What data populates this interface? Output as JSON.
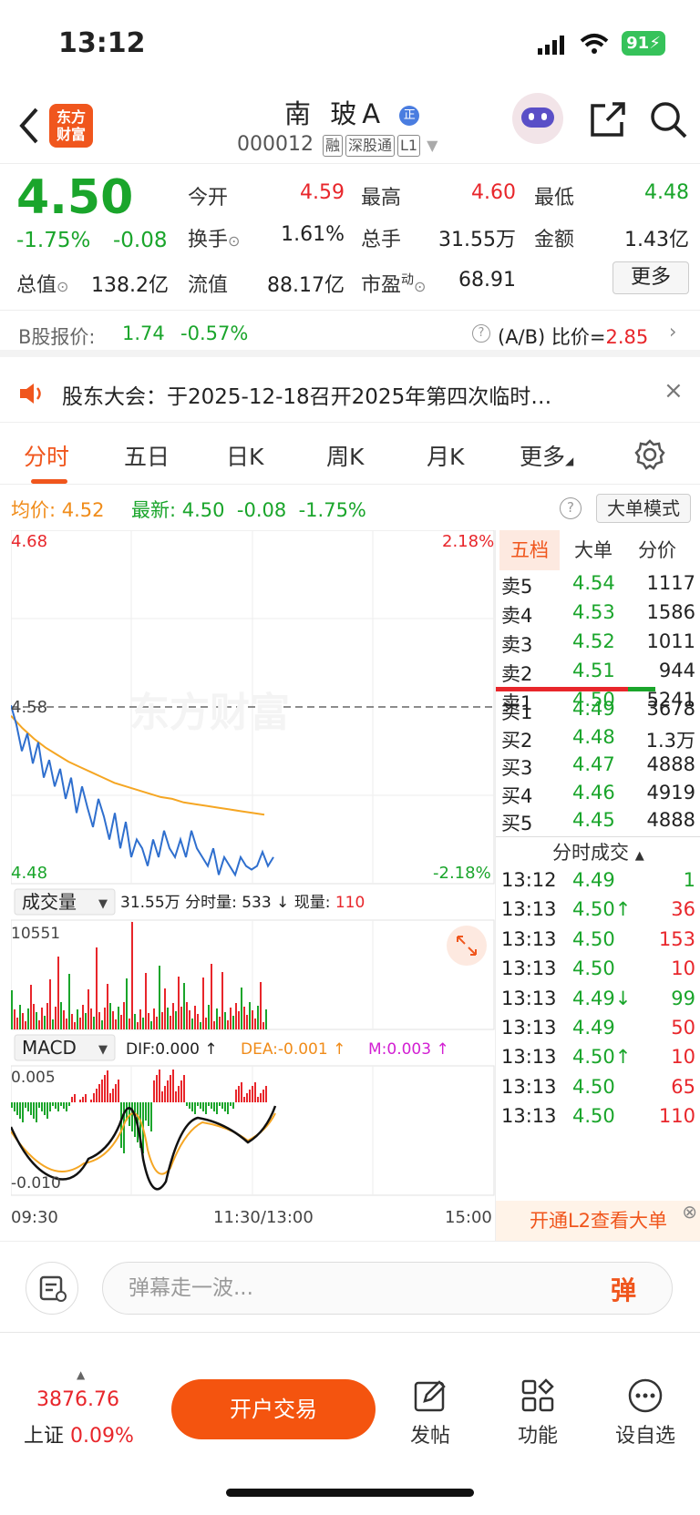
{
  "status": {
    "time": "13:12",
    "battery": "91"
  },
  "header": {
    "logo_line1": "东方",
    "logo_line2": "财富",
    "name": "南 玻A",
    "code": "000012",
    "tags": [
      "融",
      "深股通",
      "L1"
    ]
  },
  "quote": {
    "price": "4.50",
    "change_pct": "-1.75%",
    "change": "-0.08",
    "open_label": "今开",
    "open": "4.59",
    "high_label": "最高",
    "high": "4.60",
    "low_label": "最低",
    "low": "4.48",
    "turnover_label": "换手",
    "turnover": "1.61%",
    "volume_label": "总手",
    "volume": "31.55万",
    "amount_label": "金额",
    "amount": "1.43亿",
    "mktcap_label": "总值",
    "mktcap": "138.2亿",
    "float_label": "流值",
    "float": "88.17亿",
    "pe_label": "市盈",
    "pe_sup": "动",
    "pe": "68.91",
    "more": "更多"
  },
  "bshare": {
    "label": "B股报价:",
    "price": "1.74",
    "pct": "-0.57%",
    "ratio_label": "(A/B) 比价=",
    "ratio": "2.85"
  },
  "notice": {
    "text": "股东大会：于2025-12-18召开2025年第四次临时…"
  },
  "tabs": [
    "分时",
    "五日",
    "日K",
    "周K",
    "月K",
    "更多"
  ],
  "avg": {
    "avg_label": "均价:",
    "avg": "4.52",
    "latest_label": "最新:",
    "latest": "4.50",
    "chg": "-0.08",
    "pct": "-1.75%",
    "mode_btn": "大单模式"
  },
  "chart": {
    "top_price": "4.68",
    "top_pct": "2.18%",
    "mid_price": "4.58",
    "bottom_price": "4.48",
    "bottom_pct": "-2.18%",
    "watermark": "东方财富",
    "vol_label": "成交量",
    "vol_info": "31.55万 分时量: 533 ↓ 现量:",
    "vol_now": "110",
    "vol_max": "10551",
    "macd_label": "MACD",
    "dif": "DIF:0.000 ↑",
    "dea": "DEA:-0.001 ↑",
    "m": "M:0.003 ↑",
    "macd_top": "0.005",
    "macd_bottom": "-0.010",
    "time_start": "09:30",
    "time_mid": "11:30/13:00",
    "time_end": "15:00",
    "price_series": [
      4.581,
      4.57,
      4.555,
      4.565,
      4.548,
      4.56,
      4.54,
      4.55,
      4.535,
      4.545,
      4.528,
      4.54,
      4.52,
      4.535,
      4.523,
      4.512,
      4.528,
      4.518,
      4.505,
      4.52,
      4.5,
      4.515,
      4.495,
      4.505,
      4.5,
      4.49,
      4.505,
      4.495,
      4.51,
      4.5,
      4.495,
      4.505,
      4.495,
      4.51,
      4.5,
      4.495,
      4.49,
      4.5,
      4.485,
      4.495,
      4.49,
      4.485,
      4.495,
      4.49,
      4.488,
      4.49,
      4.498,
      4.49,
      4.495
    ],
    "avg_series": [
      4.575,
      4.568,
      4.562,
      4.557,
      4.553,
      4.549,
      4.546,
      4.543,
      4.54,
      4.537,
      4.535,
      4.533,
      4.531,
      4.529,
      4.528,
      4.526,
      4.525,
      4.524,
      4.523,
      4.522,
      4.521,
      4.52,
      4.519
    ]
  },
  "orderbook": {
    "tabs": [
      "五档",
      "大单",
      "分价"
    ],
    "asks": [
      {
        "label": "卖5",
        "price": "4.54",
        "vol": "1117"
      },
      {
        "label": "卖4",
        "price": "4.53",
        "vol": "1586"
      },
      {
        "label": "卖3",
        "price": "4.52",
        "vol": "1011"
      },
      {
        "label": "卖2",
        "price": "4.51",
        "vol": "944"
      },
      {
        "label": "卖1",
        "price": "4.50",
        "vol": "5241"
      }
    ],
    "bids": [
      {
        "label": "买1",
        "price": "4.49",
        "vol": "3678"
      },
      {
        "label": "买2",
        "price": "4.48",
        "vol": "1.3万"
      },
      {
        "label": "买3",
        "price": "4.47",
        "vol": "4888"
      },
      {
        "label": "买4",
        "price": "4.46",
        "vol": "4919"
      },
      {
        "label": "买5",
        "price": "4.45",
        "vol": "4888"
      }
    ],
    "ticks_title": "分时成交",
    "ticks": [
      {
        "t": "13:12",
        "p": "4.49",
        "v": "1"
      },
      {
        "t": "13:13",
        "p": "4.50↑",
        "v": "36"
      },
      {
        "t": "13:13",
        "p": "4.50",
        "v": "153"
      },
      {
        "t": "13:13",
        "p": "4.50",
        "v": "10"
      },
      {
        "t": "13:13",
        "p": "4.49↓",
        "v": "99"
      },
      {
        "t": "13:13",
        "p": "4.49",
        "v": "50"
      },
      {
        "t": "13:13",
        "p": "4.50↑",
        "v": "10"
      },
      {
        "t": "13:13",
        "p": "4.50",
        "v": "65"
      },
      {
        "t": "13:13",
        "p": "4.50",
        "v": "110"
      }
    ],
    "l2_text": "开通L2查看大单"
  },
  "danmu": {
    "placeholder": "弹幕走一波...",
    "btn": "弹"
  },
  "bottom": {
    "index_value": "3876.76",
    "index_name": "上证",
    "index_pct": "0.09%",
    "trade": "开户交易",
    "post": "发帖",
    "func": "功能",
    "watch": "设自选"
  }
}
